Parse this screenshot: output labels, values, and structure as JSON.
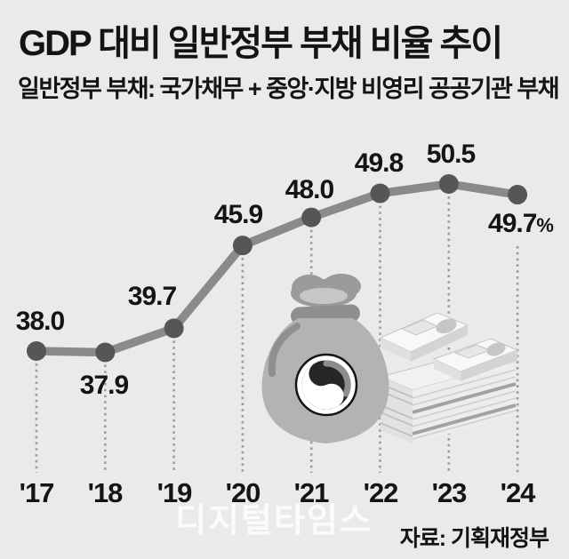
{
  "header": {
    "title": "GDP 대비 일반정부 부채 비율 추이",
    "subtitle": "일반정부 부채: 국가채무 + 중앙·지방 비영리 공공기관 부채"
  },
  "footer": {
    "source": "자료: 기획재정부",
    "watermark": "디지털타임스"
  },
  "chart_data": {
    "type": "line",
    "title": "GDP 대비 일반정부 부채 비율 추이",
    "categories": [
      "'17",
      "'18",
      "'19",
      "'20",
      "'21",
      "'22",
      "'23",
      "'24"
    ],
    "values": [
      38.0,
      37.9,
      39.7,
      45.9,
      48.0,
      49.8,
      50.5,
      49.7
    ],
    "point_labels": [
      "38.0",
      "37.9",
      "39.7",
      "45.9",
      "48.0",
      "49.8",
      "50.5",
      "49.7"
    ],
    "unit": "%",
    "xlabel": "",
    "ylabel": "",
    "ylim": [
      36,
      52
    ],
    "grid": "vertical-dotted-guides",
    "legend": "none"
  },
  "icons": {
    "money_bag": "money-bag-with-taegeuk-symbol",
    "cash": "stacked-banknote-bundles"
  },
  "colors": {
    "background": "#eaeaea",
    "text": "#141414",
    "line": "#8a8a8a",
    "marker": "#565656",
    "guide": "#9c9c9c",
    "watermark": "rgba(255,255,255,0.78)"
  }
}
